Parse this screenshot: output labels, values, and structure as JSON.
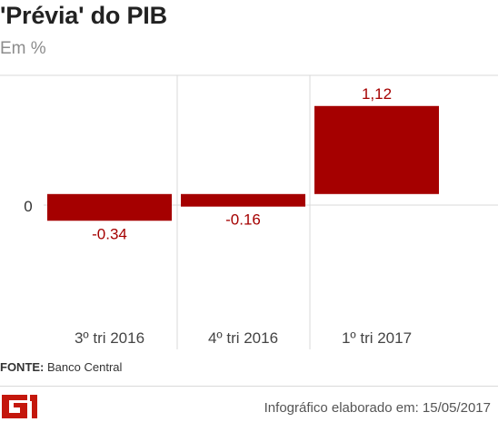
{
  "header": {
    "title": "'Prévia' do PIB",
    "subtitle": "Em %"
  },
  "chart_data": {
    "type": "bar",
    "title": "'Prévia' do PIB",
    "subtitle": "Em %",
    "categories": [
      "3º tri 2016",
      "4º tri 2016",
      "1º tri 2017"
    ],
    "values": [
      -0.34,
      -0.16,
      1.12
    ],
    "value_labels": [
      "-0.34",
      "-0.16",
      "1,12"
    ],
    "zero_label": "0",
    "xlabel": "",
    "ylabel": "",
    "ylim": [
      -1.63,
      1.51
    ],
    "grid": false,
    "bar_color": "#a50000"
  },
  "source": {
    "label": "FONTE:",
    "value": "Banco Central"
  },
  "footer": {
    "logo_text": "G1",
    "logo_color": "#c4170c",
    "credit": "Infográfico elaborado em: 15/05/2017"
  }
}
